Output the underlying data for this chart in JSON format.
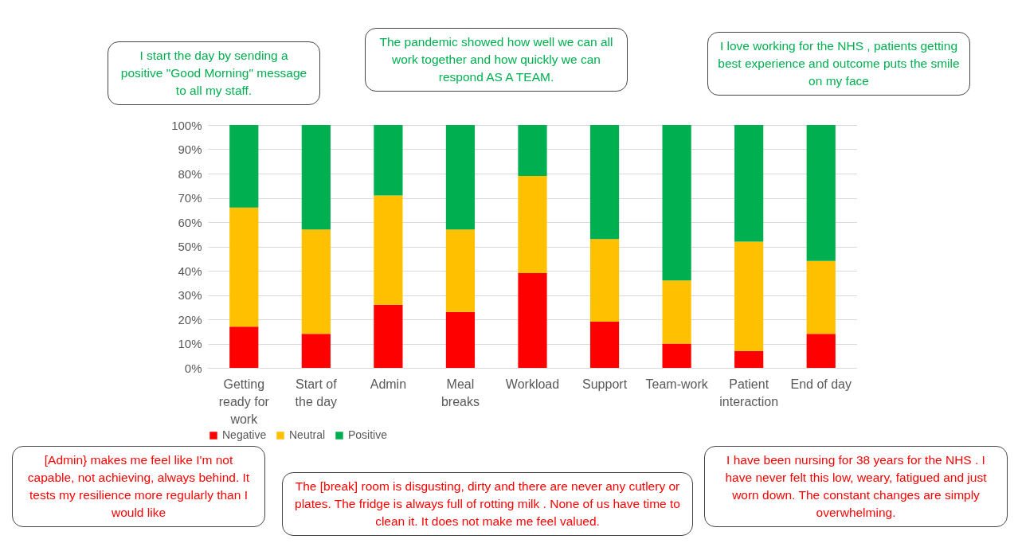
{
  "chart_data": {
    "type": "bar",
    "stacked": true,
    "categories": [
      "Getting ready for work",
      "Start of the day",
      "Admin",
      "Meal breaks",
      "Workload",
      "Support",
      "Team-work",
      "Patient interaction",
      "End of day"
    ],
    "series": [
      {
        "name": "Negative",
        "color": "#ff0000",
        "values": [
          17,
          14,
          26,
          23,
          39,
          19,
          10,
          7,
          14
        ]
      },
      {
        "name": "Neutral",
        "color": "#ffc000",
        "values": [
          49,
          43,
          45,
          34,
          40,
          34,
          26,
          45,
          30
        ]
      },
      {
        "name": "Positive",
        "color": "#00b050",
        "values": [
          34,
          43,
          29,
          43,
          21,
          47,
          64,
          48,
          56
        ]
      }
    ],
    "ylim": [
      0,
      100
    ],
    "yticks": [
      {
        "value": 0,
        "label": "0%"
      },
      {
        "value": 10,
        "label": "10%"
      },
      {
        "value": 20,
        "label": "20%"
      },
      {
        "value": 30,
        "label": "30%"
      },
      {
        "value": 40,
        "label": "40%"
      },
      {
        "value": 50,
        "label": "50%"
      },
      {
        "value": 60,
        "label": "60%"
      },
      {
        "value": 70,
        "label": "70%"
      },
      {
        "value": 80,
        "label": "80%"
      },
      {
        "value": 90,
        "label": "90%"
      },
      {
        "value": 100,
        "label": "100%"
      }
    ],
    "grid": "y",
    "legend": "bottom",
    "annotations": [
      "I start the day by sending a positive \"Good Morning\" message to all my staff.",
      "The pandemic showed how well we can all work together and how quickly we can respond AS A TEAM.",
      "I love working for the NHS , patients getting best experience and outcome puts the smile on my face",
      "[Admin} makes me feel like I'm not capable, not achieving, always behind. It tests my resilience more regularly than I would like",
      "The [break] room is disgusting, dirty and there are never any cutlery or plates. The fridge is always full of rotting milk . None of us have time to clean it. It does not make me feel valued.",
      "I have been nursing for 38 years for the NHS . I have never felt this low, weary, fatigued and just worn down. The constant changes are simply overwhelming."
    ]
  }
}
